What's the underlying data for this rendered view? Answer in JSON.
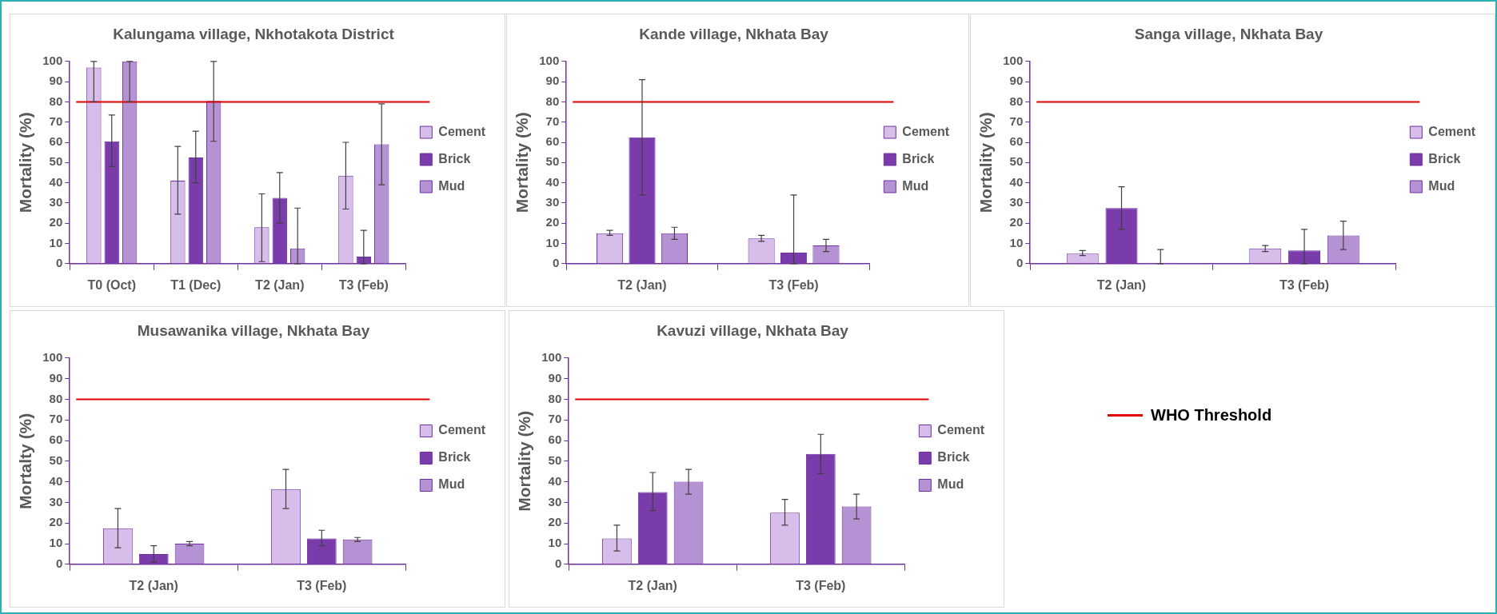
{
  "chart_data": [
    {
      "type": "bar",
      "title": "Kalungama village, Nkhotakota District",
      "ylabel": "Mortality (%)",
      "categories": [
        "T0 (Oct)",
        "T1 (Dec)",
        "T2 (Jan)",
        "T3 (Feb)"
      ],
      "ylim": [
        0,
        100
      ],
      "yticks": [
        0,
        10,
        20,
        30,
        40,
        50,
        60,
        70,
        80,
        90,
        100
      ],
      "grid": false,
      "legend": "right",
      "series": [
        {
          "name": "Cement",
          "color": "#d7bde9",
          "values": [
            97,
            41,
            18,
            43.5
          ],
          "errors": [
            [
              80,
              100
            ],
            [
              24.5,
              58
            ],
            [
              1,
              34.5
            ],
            [
              27,
              60
            ]
          ]
        },
        {
          "name": "Brick",
          "color": "#7a3bab",
          "values": [
            60.5,
            52.5,
            32.5,
            3.5
          ],
          "errors": [
            [
              48,
              73.5
            ],
            [
              40,
              65.5
            ],
            [
              20,
              45
            ],
            [
              0,
              16.5
            ]
          ]
        },
        {
          "name": "Mud",
          "color": "#b592d3",
          "values": [
            100,
            80.5,
            7.5,
            59
          ],
          "errors": [
            [
              80,
              100
            ],
            [
              60.5,
              100
            ],
            [
              0,
              27.5
            ],
            [
              39,
              79
            ]
          ]
        }
      ],
      "ref_lines": [
        {
          "axis": "y",
          "value": 80,
          "color": "#e00000"
        }
      ]
    },
    {
      "type": "bar",
      "title": "Kande village, Nkhata Bay",
      "ylabel": "Mortality (%)",
      "categories": [
        "T2 (Jan)",
        "T3 (Feb)"
      ],
      "ylim": [
        0,
        100
      ],
      "yticks": [
        0,
        10,
        20,
        30,
        40,
        50,
        60,
        70,
        80,
        90,
        100
      ],
      "grid": false,
      "legend": "right",
      "series": [
        {
          "name": "Cement",
          "color": "#d7bde9",
          "values": [
            15,
            12.5
          ],
          "errors": [
            [
              14,
              16.5
            ],
            [
              11,
              14
            ]
          ]
        },
        {
          "name": "Brick",
          "color": "#7a3bab",
          "values": [
            62.5,
            5.5
          ],
          "errors": [
            [
              34,
              91
            ],
            [
              0,
              34
            ]
          ]
        },
        {
          "name": "Mud",
          "color": "#b592d3",
          "values": [
            15,
            9
          ],
          "errors": [
            [
              12,
              18
            ],
            [
              6,
              12
            ]
          ]
        }
      ],
      "ref_lines": [
        {
          "axis": "y",
          "value": 80,
          "color": "#e00000"
        }
      ]
    },
    {
      "type": "bar",
      "title": "Sanga village, Nkhata Bay",
      "ylabel": "Mortality (%)",
      "categories": [
        "T2 (Jan)",
        "T3 (Feb)"
      ],
      "ylim": [
        0,
        100
      ],
      "yticks": [
        0,
        10,
        20,
        30,
        40,
        50,
        60,
        70,
        80,
        90,
        100
      ],
      "grid": false,
      "legend": "right",
      "series": [
        {
          "name": "Cement",
          "color": "#d7bde9",
          "values": [
            5,
            7.5
          ],
          "errors": [
            [
              4,
              6.5
            ],
            [
              6,
              9
            ]
          ]
        },
        {
          "name": "Brick",
          "color": "#7a3bab",
          "values": [
            27.5,
            6.5
          ],
          "errors": [
            [
              17,
              38
            ],
            [
              0,
              17
            ]
          ]
        },
        {
          "name": "Mud",
          "color": "#b592d3",
          "values": [
            0,
            14
          ],
          "errors": [
            [
              0,
              7
            ],
            [
              7,
              21
            ]
          ]
        }
      ],
      "ref_lines": [
        {
          "axis": "y",
          "value": 80,
          "color": "#e00000"
        }
      ]
    },
    {
      "type": "bar",
      "title": "Musawanika village, Nkhata Bay",
      "ylabel": "Mortalty (%)",
      "categories": [
        "T2 (Jan)",
        "T3 (Feb)"
      ],
      "ylim": [
        0,
        100
      ],
      "yticks": [
        0,
        10,
        20,
        30,
        40,
        50,
        60,
        70,
        80,
        90,
        100
      ],
      "grid": false,
      "legend": "right",
      "series": [
        {
          "name": "Cement",
          "color": "#d7bde9",
          "values": [
            17.5,
            36.5
          ],
          "errors": [
            [
              8,
              27
            ],
            [
              27,
              46
            ]
          ]
        },
        {
          "name": "Brick",
          "color": "#7a3bab",
          "values": [
            5,
            12.5
          ],
          "errors": [
            [
              1,
              9
            ],
            [
              9,
              16.5
            ]
          ]
        },
        {
          "name": "Mud",
          "color": "#b592d3",
          "values": [
            10,
            12
          ],
          "errors": [
            [
              9,
              11
            ],
            [
              11,
              13
            ]
          ]
        }
      ],
      "ref_lines": [
        {
          "axis": "y",
          "value": 80,
          "color": "#e00000"
        }
      ]
    },
    {
      "type": "bar",
      "title": "Kavuzi village, Nkhata Bay",
      "ylabel": "Mortality (%)",
      "categories": [
        "T2 (Jan)",
        "T3 (Feb)"
      ],
      "ylim": [
        0,
        100
      ],
      "yticks": [
        0,
        10,
        20,
        30,
        40,
        50,
        60,
        70,
        80,
        90,
        100
      ],
      "grid": false,
      "legend": "right",
      "series": [
        {
          "name": "Cement",
          "color": "#d7bde9",
          "values": [
            12.5,
            25
          ],
          "errors": [
            [
              6.5,
              19
            ],
            [
              19,
              31.5
            ]
          ]
        },
        {
          "name": "Brick",
          "color": "#7a3bab",
          "values": [
            35,
            53.5
          ],
          "errors": [
            [
              26,
              44.5
            ],
            [
              44,
              63
            ]
          ]
        },
        {
          "name": "Mud",
          "color": "#b592d3",
          "values": [
            40,
            28
          ],
          "errors": [
            [
              34,
              46
            ],
            [
              22,
              34
            ]
          ]
        }
      ],
      "ref_lines": [
        {
          "axis": "y",
          "value": 80,
          "color": "#e00000",
          "label": "WHO Threshold"
        }
      ]
    }
  ]
}
